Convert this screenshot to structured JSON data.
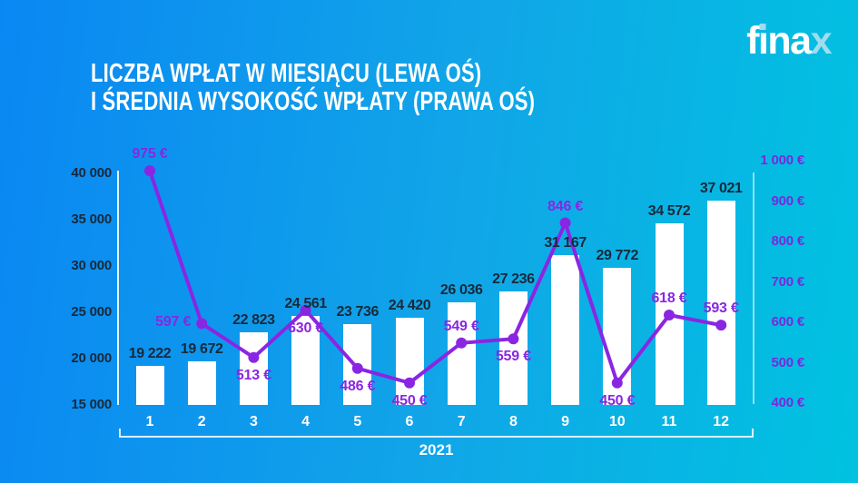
{
  "title": {
    "line1": "LICZBA WPŁAT W MIESIĄCU (LEWA OŚ)",
    "line2": "I ŚREDNIA WYSOKOŚĆ WPŁATY (PRAWA OŚ)"
  },
  "logo": {
    "text": "finax",
    "accent_color": "#9fdcee"
  },
  "colors": {
    "background_left": "#0a87f3",
    "background_mid": "#11a5e8",
    "background_right": "#00c3e0",
    "bar": "#ffffff",
    "line": "#8a26e2",
    "value_label": "#18293a",
    "axis_left_label": "#18293a",
    "axis_right_label": "#7b28dd",
    "axis_line_left": "rgba(255,255,255,0.9)",
    "axis_line_right": "rgba(255,255,255,0.55)",
    "month_label": "#ffffff",
    "bracket": "rgba(255,255,255,0.85)",
    "year_label": "#ffffff",
    "title": "#ffffff"
  },
  "chart_data": {
    "type": "combo",
    "title": "Liczba wpłat w miesiącu (lewa oś) i średnia wysokość wpłaty (prawa oś)",
    "categories": [
      "1",
      "2",
      "3",
      "4",
      "5",
      "6",
      "7",
      "8",
      "9",
      "10",
      "11",
      "12"
    ],
    "series": [
      {
        "name": "liczba-wplat-w-miesiacu",
        "chart_type": "bar",
        "axis": "left",
        "values": [
          19222,
          19672,
          22823,
          24561,
          23736,
          24420,
          26036,
          27236,
          31167,
          29772,
          34572,
          37021
        ],
        "labels": [
          "19 222",
          "19 672",
          "22 823",
          "24 561",
          "23 736",
          "24 420",
          "26 036",
          "27 236",
          "31 167",
          "29 772",
          "34 572",
          "37 021"
        ]
      },
      {
        "name": "srednia-wysokosc-wplaty",
        "chart_type": "line",
        "axis": "right",
        "values": [
          975,
          597,
          513,
          630,
          486,
          450,
          549,
          559,
          846,
          450,
          618,
          593
        ],
        "labels": [
          "975 €",
          "597 €",
          "513 €",
          "630 €",
          "486 €",
          "450 €",
          "549 €",
          "559 €",
          "846 €",
          "450 €",
          "618 €",
          "593 €"
        ],
        "label_placement": [
          "above",
          "left",
          "below",
          "below",
          "below",
          "below",
          "above",
          "below",
          "above",
          "below",
          "above",
          "above"
        ]
      }
    ],
    "left_axis": {
      "min": 15000,
      "max": 40000,
      "ticks": [
        40000,
        35000,
        30000,
        25000,
        20000,
        15000
      ],
      "tick_labels": [
        "40 000",
        "35 000",
        "30 000",
        "25 000",
        "20 000",
        "15 000"
      ]
    },
    "right_axis": {
      "min": 400,
      "max": 1000,
      "ticks": [
        1000,
        900,
        800,
        700,
        600,
        500,
        400
      ],
      "tick_labels": [
        "1 000 €",
        "900 €",
        "800 €",
        "700 €",
        "600 €",
        "500 €",
        "400 €"
      ]
    },
    "x_axis": {
      "labels": [
        "1",
        "2",
        "3",
        "4",
        "5",
        "6",
        "7",
        "8",
        "9",
        "10",
        "11",
        "12"
      ],
      "group_label": "2021"
    },
    "legend": "none",
    "grid": "off"
  }
}
